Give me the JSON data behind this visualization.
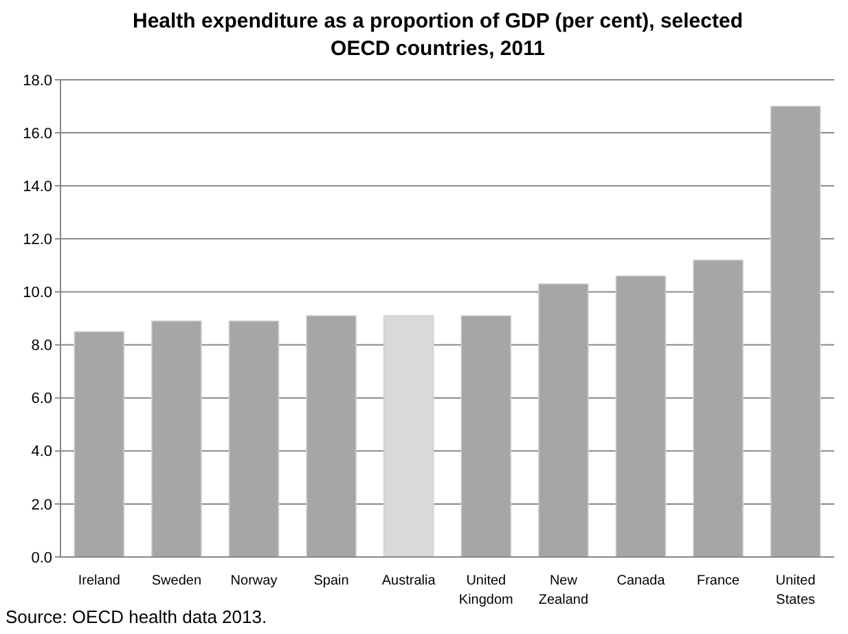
{
  "chart_data": {
    "type": "bar",
    "title": "Health expenditure as a proportion of GDP (per cent), selected OECD countries, 2011",
    "categories": [
      "Ireland",
      "Sweden",
      "Norway",
      "Spain",
      "Australia",
      "United Kingdom",
      "New Zealand",
      "Canada",
      "France",
      "United States"
    ],
    "values": [
      8.5,
      8.9,
      8.9,
      9.1,
      9.1,
      9.1,
      10.3,
      10.6,
      11.2,
      17.0
    ],
    "colors": [
      "#a6a6a6",
      "#a6a6a6",
      "#a6a6a6",
      "#a6a6a6",
      "#d9d9d9",
      "#a6a6a6",
      "#a6a6a6",
      "#a6a6a6",
      "#a6a6a6",
      "#a6a6a6"
    ],
    "ylim": [
      0,
      18
    ],
    "yticks": [
      {
        "value": 0,
        "label": "0.0"
      },
      {
        "value": 2,
        "label": "2.0"
      },
      {
        "value": 4,
        "label": "4.0"
      },
      {
        "value": 6,
        "label": "6.0"
      },
      {
        "value": 8,
        "label": "8.0"
      },
      {
        "value": 10,
        "label": "10.0"
      },
      {
        "value": 12,
        "label": "12.0"
      },
      {
        "value": 14,
        "label": "14.0"
      },
      {
        "value": 16,
        "label": "16.0"
      },
      {
        "value": 18,
        "label": "18.0"
      }
    ],
    "grid": "y",
    "annotations": [
      "Source: OECD health data 2013."
    ]
  }
}
